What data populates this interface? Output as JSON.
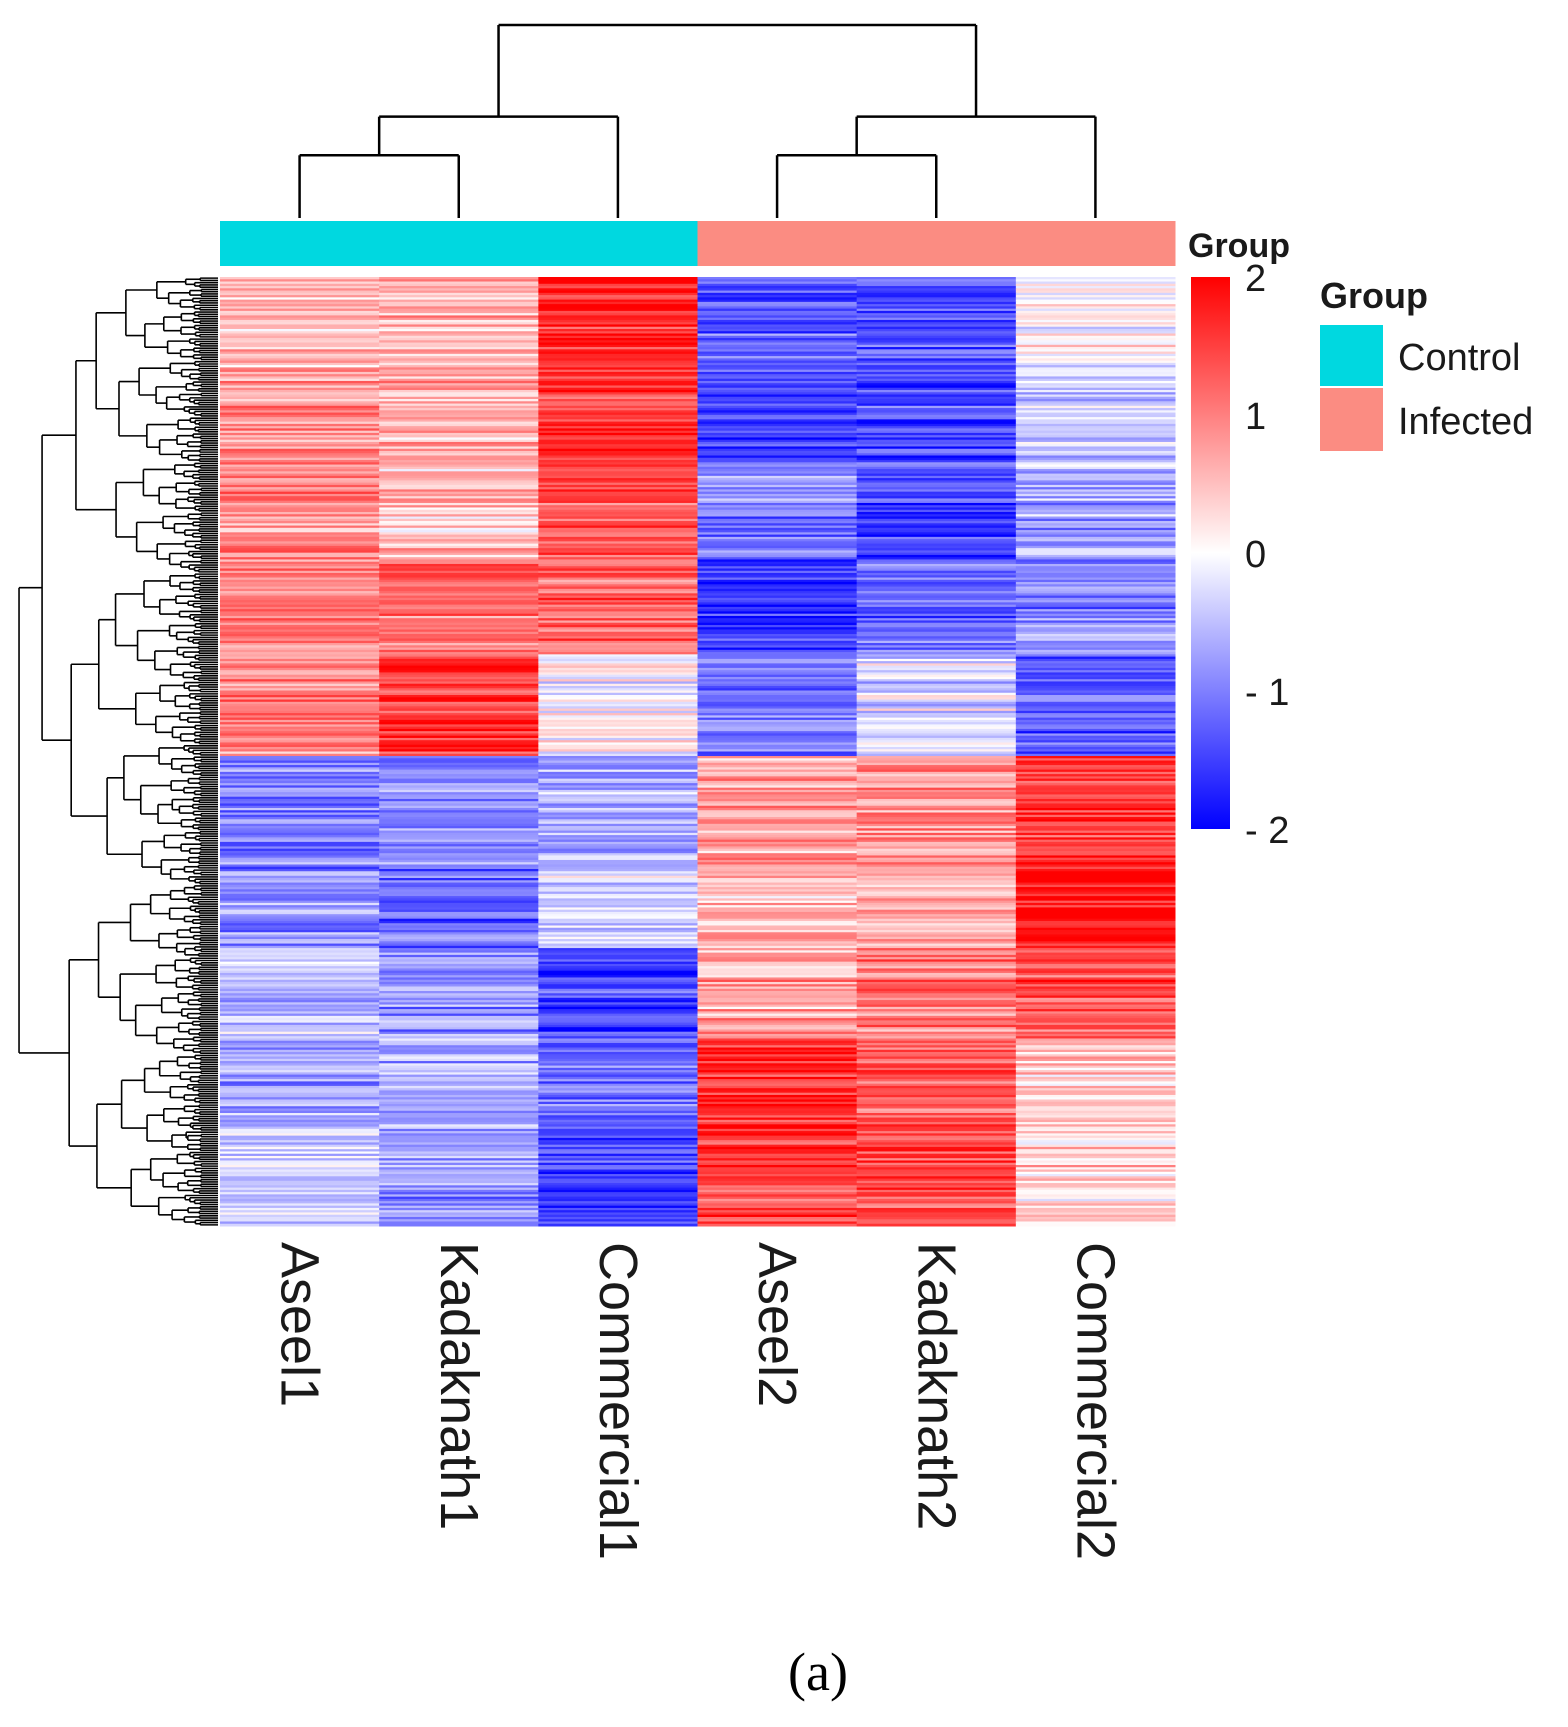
{
  "chart_data": {
    "type": "heatmap",
    "columns": [
      "Aseel1",
      "Kadaknath1",
      "Commercial1",
      "Aseel2",
      "Kadaknath2",
      "Commercial2"
    ],
    "column_groups": [
      "Control",
      "Control",
      "Control",
      "Infected",
      "Infected",
      "Infected"
    ],
    "column_dendrogram": {
      "merges": [
        {
          "left": "Aseel1",
          "right": "Kadaknath1",
          "height": 1.3
        },
        {
          "left": "Aseel2",
          "right": "Kadaknath2",
          "height": 1.3
        },
        {
          "left": "Aseel1+Kadaknath1",
          "right": "Commercial1",
          "height": 2.1
        },
        {
          "left": "Aseel2+Kadaknath2",
          "right": "Commercial2",
          "height": 2.1
        },
        {
          "left": "Control",
          "right": "Infected",
          "height": 4.0
        }
      ]
    },
    "row_blocks": [
      {
        "rows": 40,
        "values": [
          0.5,
          0.6,
          1.7,
          -1.3,
          -1.4,
          0.0
        ]
      },
      {
        "rows": 45,
        "values": [
          0.9,
          0.7,
          1.6,
          -1.4,
          -1.4,
          -0.4
        ]
      },
      {
        "rows": 40,
        "values": [
          0.9,
          0.5,
          1.4,
          -1.0,
          -1.5,
          -0.7
        ]
      },
      {
        "rows": 42,
        "values": [
          1.0,
          1.1,
          1.2,
          -1.6,
          -1.2,
          -1.0
        ]
      },
      {
        "rows": 45,
        "values": [
          1.0,
          1.6,
          0.0,
          -1.1,
          -0.3,
          -1.3
        ]
      },
      {
        "rows": 50,
        "values": [
          -1.0,
          -0.9,
          -0.7,
          0.8,
          0.9,
          1.6
        ]
      },
      {
        "rows": 35,
        "values": [
          -0.9,
          -1.2,
          -0.3,
          0.5,
          0.7,
          1.9
        ]
      },
      {
        "rows": 40,
        "values": [
          -0.6,
          -0.9,
          -1.5,
          0.7,
          1.0,
          1.3
        ]
      },
      {
        "rows": 40,
        "values": [
          -0.8,
          -0.7,
          -1.2,
          1.6,
          1.2,
          0.4
        ]
      },
      {
        "rows": 43,
        "values": [
          -0.5,
          -0.8,
          -1.5,
          1.4,
          1.3,
          0.3
        ]
      }
    ],
    "color_scale": {
      "low": "#0000ff",
      "mid": "#ffffff",
      "high": "#ff0000",
      "range": [
        -2,
        2
      ],
      "ticks": [
        2,
        1,
        0,
        -1,
        -2
      ],
      "tick_labels": [
        "2",
        "1",
        "0",
        "- 1",
        "- 2"
      ],
      "title": "Group"
    },
    "legend": {
      "title": "Group",
      "items": [
        {
          "label": "Control",
          "color": "#00d8e0"
        },
        {
          "label": "Infected",
          "color": "#fb8c82"
        }
      ],
      "position": "right"
    },
    "caption": "(a)"
  }
}
